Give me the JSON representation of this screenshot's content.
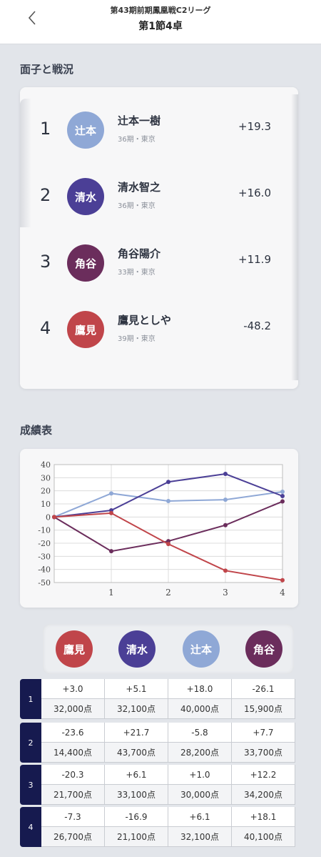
{
  "header": {
    "league": "第43期前期鳳凰戦C2リーグ",
    "table": "第1節4卓"
  },
  "sections": {
    "standings_title": "面子と戦況",
    "results_title": "成績表"
  },
  "players": [
    {
      "rank": "1",
      "short": "辻本",
      "name": "辻本一樹",
      "meta": "36期・東京",
      "score": "+19.3",
      "color": "#8fa8d6"
    },
    {
      "rank": "2",
      "short": "清水",
      "name": "清水智之",
      "meta": "36期・東京",
      "score": "+16.0",
      "color": "#4b3f96"
    },
    {
      "rank": "3",
      "short": "角谷",
      "name": "角谷陽介",
      "meta": "33期・東京",
      "score": "+11.9",
      "color": "#6b2d5c"
    },
    {
      "rank": "4",
      "short": "鷹見",
      "name": "鷹見としや",
      "meta": "39期・東京",
      "score": "-48.2",
      "color": "#c0454a"
    }
  ],
  "chart_data": {
    "type": "line",
    "x": [
      0,
      1,
      2,
      3,
      4
    ],
    "x_tick_labels": [
      "1",
      "2",
      "3",
      "4"
    ],
    "y_ticks": [
      "40",
      "30",
      "20",
      "10",
      "0",
      "-10",
      "-20",
      "-30",
      "-40",
      "-50"
    ],
    "ylim": [
      -50,
      40
    ],
    "grid": true,
    "series": [
      {
        "values": [
          0,
          18.0,
          12.2,
          13.2,
          19.3
        ],
        "color": "#8fa8d6"
      },
      {
        "values": [
          0,
          5.1,
          26.8,
          32.9,
          16.0
        ],
        "color": "#4b3f96"
      },
      {
        "values": [
          0,
          -26.1,
          -18.4,
          -6.2,
          11.9
        ],
        "color": "#6b2d5c"
      },
      {
        "values": [
          0,
          3.0,
          -20.6,
          -40.9,
          -48.2
        ],
        "color": "#c0454a"
      }
    ]
  },
  "table_columns": [
    {
      "short": "鷹見",
      "color": "#c0454a"
    },
    {
      "short": "清水",
      "color": "#4b3f96"
    },
    {
      "short": "辻本",
      "color": "#8fa8d6"
    },
    {
      "short": "角谷",
      "color": "#6b2d5c"
    }
  ],
  "games": [
    {
      "label": "1",
      "diffs": [
        "+3.0",
        "+5.1",
        "+18.0",
        "-26.1"
      ],
      "points": [
        "32,000点",
        "32,100点",
        "40,000点",
        "15,900点"
      ]
    },
    {
      "label": "2",
      "diffs": [
        "-23.6",
        "+21.7",
        "-5.8",
        "+7.7"
      ],
      "points": [
        "14,400点",
        "43,700点",
        "28,200点",
        "33,700点"
      ]
    },
    {
      "label": "3",
      "diffs": [
        "-20.3",
        "+6.1",
        "+1.0",
        "+12.2"
      ],
      "points": [
        "21,700点",
        "33,100点",
        "30,000点",
        "34,200点"
      ]
    },
    {
      "label": "4",
      "diffs": [
        "-7.3",
        "-16.9",
        "+6.1",
        "+18.1"
      ],
      "points": [
        "26,700点",
        "21,100点",
        "32,100点",
        "40,100点"
      ]
    }
  ]
}
